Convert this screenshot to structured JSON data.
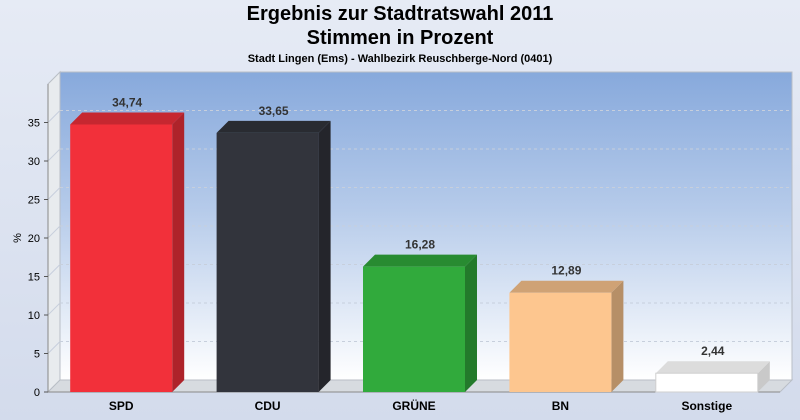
{
  "chart_data": {
    "type": "bar",
    "title": "Ergebnis zur Stadtratswahl 2011",
    "subtitle_line": "Stimmen in Prozent",
    "caption": "Stadt Lingen (Ems) - Wahlbezirk Reuschberge-Nord (0401)",
    "ylabel": "%",
    "xlabel": "",
    "ylim": [
      0,
      40
    ],
    "yticks": [
      0,
      5,
      10,
      15,
      20,
      25,
      30,
      35
    ],
    "categories": [
      "SPD",
      "CDU",
      "GRÜNE",
      "BN",
      "Sonstige"
    ],
    "values": [
      34.74,
      33.65,
      16.28,
      12.89,
      2.44
    ],
    "value_labels": [
      "34,74",
      "33,65",
      "16,28",
      "12,89",
      "2,44"
    ],
    "colors": [
      "#f2303a",
      "#32343c",
      "#31aa3c",
      "#fdc68f",
      "#ffffff"
    ],
    "grid": true
  }
}
